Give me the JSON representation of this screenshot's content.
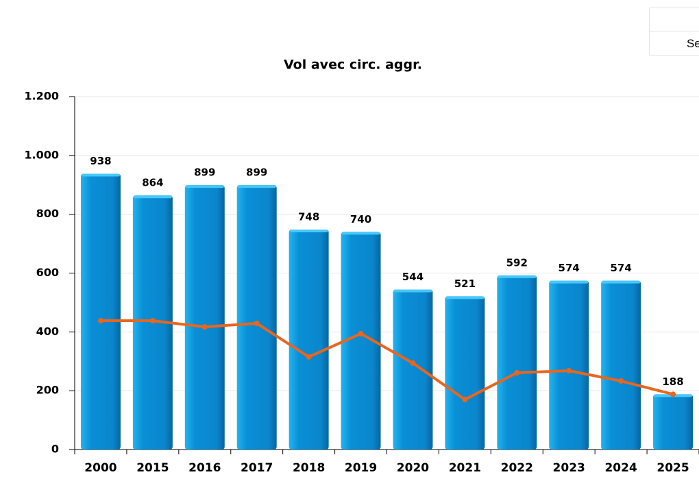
{
  "chart_data": {
    "type": "bar",
    "title": "Vol avec circ. aggr.",
    "categories": [
      "2000",
      "2015",
      "2016",
      "2017",
      "2018",
      "2019",
      "2020",
      "2021",
      "2022",
      "2023",
      "2024",
      "2025"
    ],
    "series": [
      {
        "type": "bar",
        "color": "#0a8fd6",
        "values": [
          938,
          864,
          899,
          899,
          748,
          740,
          544,
          521,
          592,
          574,
          574,
          188
        ]
      },
      {
        "type": "line",
        "color": "#e8661e",
        "values": [
          438,
          438,
          417,
          429,
          315,
          394,
          294,
          170,
          261,
          268,
          233,
          188
        ]
      }
    ],
    "ylim": [
      0,
      1200
    ],
    "yticks": [
      0,
      200,
      400,
      600,
      800,
      {
        "value": 1000,
        "label": "1.000"
      },
      {
        "value": 1200,
        "label": "1.200"
      }
    ],
    "grid": true
  },
  "panel": {
    "label": "Se"
  }
}
